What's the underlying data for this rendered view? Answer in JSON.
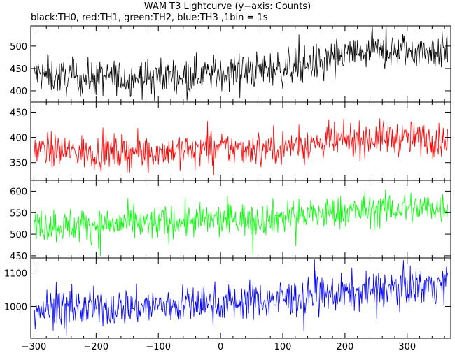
{
  "title": "WAM T3 Lightcurve (y−axis: Counts)",
  "subtitle": "black:TH0, red:TH1, green:TH2, blue:TH3 ,1bin = 1s",
  "chart_data": {
    "type": "line",
    "x_range": [
      -305,
      370
    ],
    "x_ticks": [
      -300,
      -200,
      -100,
      0,
      100,
      200,
      300
    ],
    "panels": [
      {
        "name": "TH0",
        "color": "#000000",
        "ylim": [
          375,
          545
        ],
        "y_ticks": [
          400,
          450,
          500
        ],
        "x": [
          -300,
          -250,
          -200,
          -150,
          -100,
          -50,
          0,
          50,
          100,
          150,
          200,
          250,
          300,
          365
        ],
        "values": [
          437,
          430,
          428,
          430,
          432,
          436,
          440,
          445,
          450,
          462,
          480,
          487,
          490,
          488
        ],
        "noise": 20
      },
      {
        "name": "TH1",
        "color": "#ff0000",
        "ylim": [
          315,
          470
        ],
        "y_ticks": [
          350,
          400,
          450
        ],
        "x": [
          -300,
          -250,
          -200,
          -150,
          -100,
          -50,
          0,
          50,
          100,
          150,
          200,
          250,
          300,
          365
        ],
        "values": [
          376,
          372,
          370,
          371,
          373,
          376,
          378,
          378,
          381,
          387,
          393,
          399,
          398,
          395
        ],
        "noise": 17
      },
      {
        "name": "TH2",
        "color": "#00ff00",
        "ylim": [
          445,
          625
        ],
        "y_ticks": [
          450,
          500,
          550,
          600
        ],
        "x": [
          -300,
          -250,
          -200,
          -150,
          -100,
          -50,
          0,
          50,
          100,
          150,
          200,
          250,
          300,
          365
        ],
        "values": [
          522,
          520,
          522,
          524,
          526,
          530,
          533,
          536,
          540,
          546,
          552,
          557,
          560,
          562
        ],
        "noise": 20
      },
      {
        "name": "TH3",
        "color": "#0000ff",
        "ylim": [
          905,
          1145
        ],
        "y_ticks": [
          1000,
          1100
        ],
        "x": [
          -300,
          -250,
          -200,
          -150,
          -100,
          -50,
          0,
          50,
          100,
          150,
          200,
          250,
          300,
          365
        ],
        "values": [
          995,
          994,
          995,
          998,
          1002,
          1006,
          1010,
          1016,
          1022,
          1030,
          1040,
          1050,
          1060,
          1068
        ],
        "noise": 28
      }
    ]
  }
}
